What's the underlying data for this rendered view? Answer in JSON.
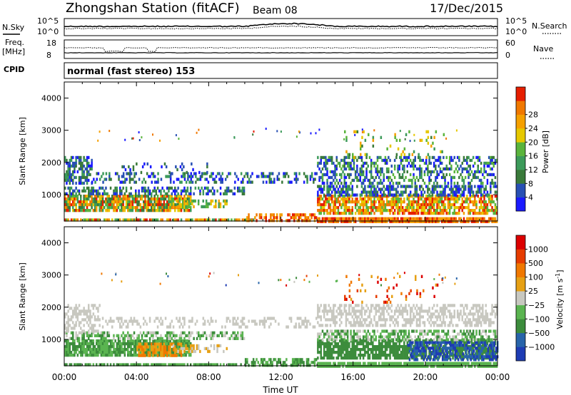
{
  "header": {
    "station": "Zhongshan Station (fitACF)",
    "beam": "Beam 08",
    "date": "17/Dec/2015"
  },
  "summary": {
    "left_labels": {
      "nsky": "N.Sky",
      "freq_line1": "Freq.",
      "freq_line2": "[MHz]",
      "cpid": "CPID"
    },
    "right_labels": {
      "nsearch": "N.Search",
      "nave": "Nave"
    },
    "noise_ticks_left": [
      "10^5",
      "10^0"
    ],
    "noise_ticks_right": [
      "10^5",
      "10^0"
    ],
    "freq_ticks": [
      "18",
      "8"
    ],
    "nave_ticks": [
      "60",
      "0"
    ],
    "cpid_text": "normal (fast stereo) 153"
  },
  "chart_data": [
    {
      "type": "heatmap",
      "name": "power",
      "ylabel": "Slant Range [km]",
      "xlabel": "",
      "ylim": [
        180,
        4500
      ],
      "xlim": [
        0,
        24
      ],
      "yticks": [
        "1000",
        "2000",
        "3000",
        "4000"
      ],
      "xticks": [
        "00:00",
        "04:00",
        "08:00",
        "12:00",
        "16:00",
        "20:00",
        "00:00"
      ],
      "colorbar": {
        "label": "Power [dB]",
        "ticks": [
          "4",
          "8",
          "12",
          "16",
          "20",
          "24",
          "28"
        ],
        "colors": [
          "#1a1aff",
          "#2850b4",
          "#3a7a3a",
          "#3c9a5a",
          "#5ab43c",
          "#e6c800",
          "#f5a000",
          "#f07800",
          "#e61e00"
        ]
      }
    },
    {
      "type": "heatmap",
      "name": "velocity",
      "ylabel": "Slant Range [km]",
      "xlabel": "Time UT",
      "ylim": [
        180,
        4500
      ],
      "xlim": [
        0,
        24
      ],
      "yticks": [
        "1000",
        "2000",
        "3000",
        "4000"
      ],
      "xticks": [
        "00:00",
        "04:00",
        "08:00",
        "12:00",
        "16:00",
        "20:00",
        "00:00"
      ],
      "colorbar": {
        "label": "Velocity [m s",
        "label_sup": "-1",
        "label_end": "]",
        "ticks": [
          "1000",
          "500",
          "100",
          "25",
          "−25",
          "−100",
          "−500",
          "−1000"
        ],
        "colors": [
          "#1e3cb4",
          "#2864aa",
          "#3c8c3c",
          "#5ab450",
          "#c8c8c0",
          "#e6a014",
          "#f07800",
          "#e63c00",
          "#dc0000"
        ]
      }
    }
  ]
}
